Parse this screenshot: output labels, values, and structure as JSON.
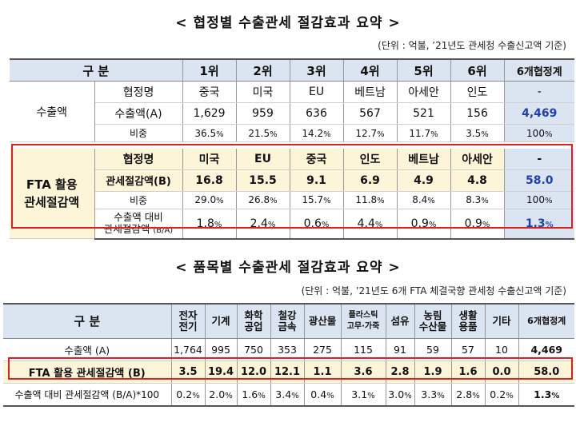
{
  "section1": {
    "title": "< 협정별 수출관세 절감효과 요약 >",
    "unit": "(단위 : 억불, ’21년도 관세청 수출신고액 기준)",
    "header": [
      "구  분",
      "1위",
      "2위",
      "3위",
      "4위",
      "5위",
      "6위",
      "6개협정계"
    ],
    "export": {
      "label": "수출액",
      "name_label": "협정명",
      "names": [
        "중국",
        "미국",
        "EU",
        "베트남",
        "아세안",
        "인도",
        "-"
      ],
      "amount_label": "수출액(A)",
      "amounts": [
        "1,629",
        "959",
        "636",
        "567",
        "521",
        "156",
        "4,469"
      ],
      "share_label": "비중",
      "shares": [
        "36.5",
        "21.5",
        "14.2",
        "12.7",
        "11.7",
        "3.5",
        "100"
      ]
    },
    "fta": {
      "label_line1": "FTA 활용",
      "label_line2": "관세절감액",
      "name_label": "협정명",
      "names": [
        "미국",
        "EU",
        "중국",
        "인도",
        "베트남",
        "아세안",
        "-"
      ],
      "saving_label": "관세절감액(B)",
      "savings": [
        "16.8",
        "15.5",
        "9.1",
        "6.9",
        "4.9",
        "4.8",
        "58.0"
      ],
      "share_label": "비중",
      "shares": [
        "29.0",
        "26.8",
        "15.7",
        "11.8",
        "8.4",
        "8.3",
        "100"
      ],
      "ratio_label1": "수출액 대비",
      "ratio_label2": "관세절감액",
      "ratio_label3": "(B/A)",
      "ratios": [
        "1.8",
        "2.4",
        "0.6",
        "4.4",
        "0.9",
        "0.9",
        "1.3"
      ]
    },
    "pct": "%"
  },
  "section2": {
    "title": "< 품목별 수출관세 절감효과 요약 >",
    "unit": "(단위 : 억불, ’21년도 6개 FTA 체결국향 관세청 수출신고액 기준)",
    "header_label": "구  분",
    "headers": [
      [
        "전자",
        "전기"
      ],
      [
        "기계"
      ],
      [
        "화학",
        "공업"
      ],
      [
        "철강",
        "금속"
      ],
      [
        "광산물"
      ],
      [
        "플라스틱",
        "고무·가죽"
      ],
      [
        "섬유"
      ],
      [
        "농림",
        "수산물"
      ],
      [
        "생활",
        "용품"
      ],
      [
        "기타"
      ],
      [
        "6개협정계"
      ]
    ],
    "export_label": "수출액 (A)",
    "exports": [
      "1,764",
      "995",
      "750",
      "353",
      "275",
      "115",
      "91",
      "59",
      "57",
      "10",
      "4,469"
    ],
    "fta_label": "FTA 활용 관세절감액 (B)",
    "savings": [
      "3.5",
      "19.4",
      "12.0",
      "12.1",
      "1.1",
      "3.6",
      "2.8",
      "1.9",
      "1.6",
      "0.0",
      "58.0"
    ],
    "ratio_label": "수출액 대비 관세절감액 (B/A)*100",
    "ratios": [
      "0.2",
      "2.0",
      "1.6",
      "3.4",
      "0.4",
      "3.1",
      "3.0",
      "3.3",
      "2.8",
      "0.2",
      "1.3"
    ],
    "pct": "%"
  }
}
